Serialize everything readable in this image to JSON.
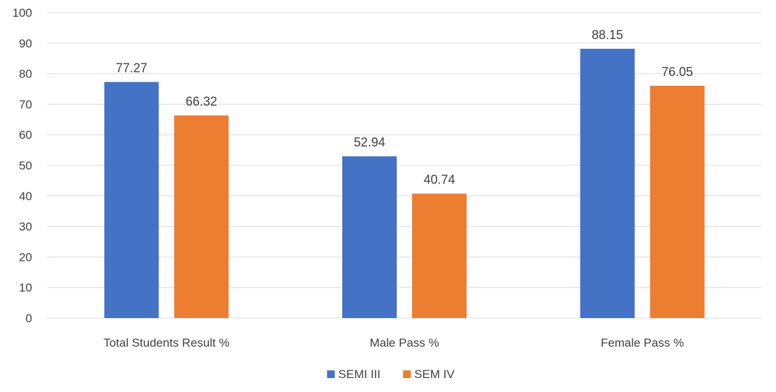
{
  "chart_data": {
    "type": "bar",
    "categories": [
      "Total Students Result %",
      "Male Pass %",
      "Female Pass %"
    ],
    "series": [
      {
        "name": "SEMI III",
        "values": [
          77.27,
          52.94,
          88.15
        ],
        "color": "#4472C4"
      },
      {
        "name": "SEM IV",
        "values": [
          66.32,
          40.74,
          76.05
        ],
        "color": "#ED7D31"
      }
    ],
    "ylim": [
      0,
      100
    ],
    "yticks": [
      0,
      10,
      20,
      30,
      40,
      50,
      60,
      70,
      80,
      90,
      100
    ],
    "grid": true,
    "legend_position": "bottom",
    "data_labels": true
  }
}
